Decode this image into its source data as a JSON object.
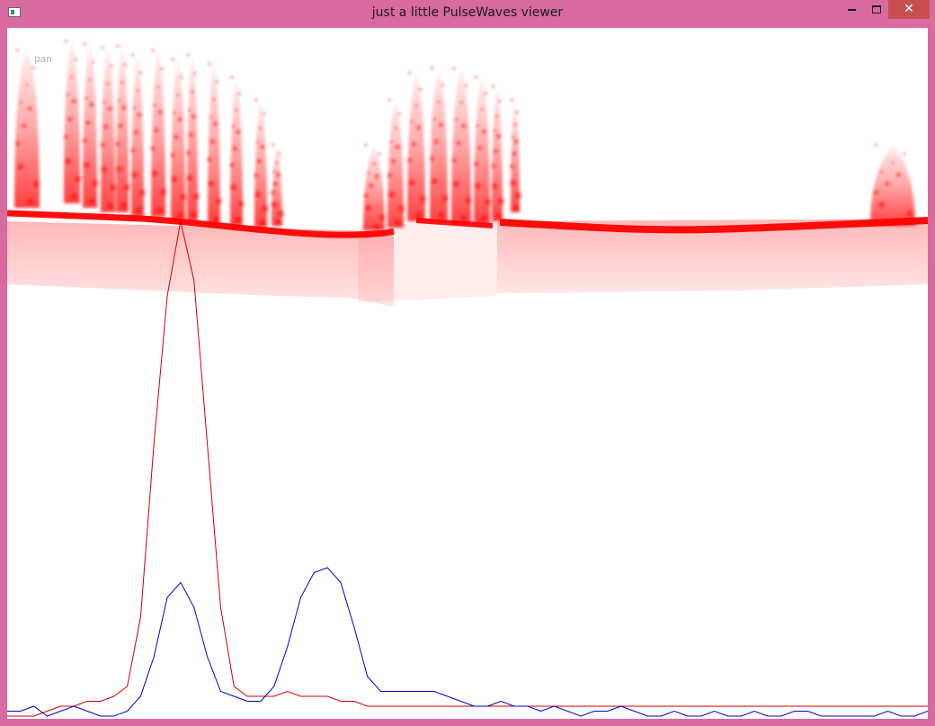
{
  "window": {
    "title": "just a little PulseWaves viewer",
    "icon": "app-window-icon",
    "controls": {
      "minimize_icon": "minimize-icon",
      "maximize_icon": "maximize-icon",
      "close_icon": "close-icon",
      "close_color": "#c7504f"
    },
    "frame_color": "#d86a9f"
  },
  "viewer": {
    "mode_label": "pan",
    "background": "#ffffff",
    "point_color": "#ff0000"
  },
  "waveforms": {
    "outgoing": {
      "color": "#d00000",
      "samples": [
        0.0,
        0.0,
        0.0,
        0.01,
        0.02,
        0.02,
        0.03,
        0.03,
        0.04,
        0.06,
        0.2,
        0.55,
        0.85,
        1.0,
        0.88,
        0.55,
        0.22,
        0.06,
        0.04,
        0.04,
        0.04,
        0.05,
        0.04,
        0.04,
        0.04,
        0.03,
        0.03,
        0.02,
        0.02,
        0.02,
        0.02,
        0.02,
        0.02,
        0.02,
        0.02,
        0.02,
        0.02,
        0.02,
        0.02,
        0.02,
        0.02,
        0.02,
        0.02,
        0.02,
        0.02,
        0.02,
        0.02,
        0.02,
        0.02,
        0.02,
        0.02,
        0.02,
        0.02,
        0.02,
        0.02,
        0.02,
        0.02,
        0.02,
        0.02,
        0.02,
        0.02,
        0.02,
        0.02,
        0.02,
        0.02,
        0.02,
        0.02,
        0.02,
        0.02,
        0.02
      ]
    },
    "returning": {
      "color": "#0000cc",
      "samples": [
        0.01,
        0.01,
        0.02,
        0.0,
        0.01,
        0.02,
        0.01,
        0.0,
        0.0,
        0.01,
        0.04,
        0.12,
        0.24,
        0.27,
        0.22,
        0.12,
        0.05,
        0.04,
        0.03,
        0.03,
        0.06,
        0.14,
        0.24,
        0.29,
        0.3,
        0.27,
        0.18,
        0.08,
        0.05,
        0.05,
        0.05,
        0.05,
        0.05,
        0.04,
        0.03,
        0.02,
        0.02,
        0.03,
        0.02,
        0.02,
        0.01,
        0.02,
        0.01,
        0.0,
        0.01,
        0.01,
        0.02,
        0.01,
        0.0,
        0.0,
        0.01,
        0.0,
        0.0,
        0.01,
        0.0,
        0.0,
        0.01,
        0.0,
        0.0,
        0.01,
        0.01,
        0.0,
        0.0,
        0.0,
        0.0,
        0.0,
        0.01,
        0.0,
        0.0,
        0.01
      ]
    }
  }
}
